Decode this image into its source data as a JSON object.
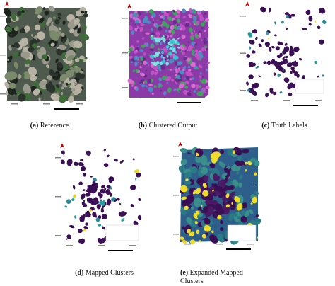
{
  "captions": [
    {
      "label": "(a)",
      "text": "Reference"
    },
    {
      "label": "(b)",
      "text": "Clustered Output"
    },
    {
      "label": "(c)",
      "text": "Truth Labels"
    },
    {
      "label": "(d)",
      "text": "Mapped Clusters"
    },
    {
      "label": "(e)",
      "text": "Expanded Mapped Clusters"
    }
  ]
}
